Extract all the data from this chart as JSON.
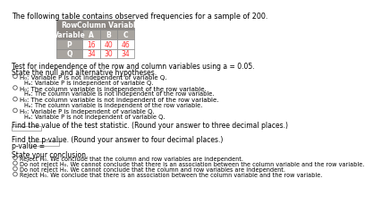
{
  "title": "The following table contains observed frequencies for a sample of 200.",
  "col_labels": [
    "A",
    "B",
    "C"
  ],
  "row_labels": [
    "P",
    "Q"
  ],
  "values": [
    [
      16,
      40,
      46
    ],
    [
      34,
      30,
      34
    ]
  ],
  "table_header_bg": "#8B8682",
  "table_sub_bg": "#A8A49F",
  "table_value_bg": "#FFFFFF",
  "table_value_color": "#FF3333",
  "alpha_text": "Test for independence of the row and column variables using a = 0.05.",
  "section1_title": "State the null and alternative hypotheses.",
  "options": [
    [
      "H₀: Variable P is not independent of variable Q.",
      "Hₐ: Variable P is independent of variable Q."
    ],
    [
      "H₀: The column variable is independent of the row variable.",
      "Hₐ: The column variable is not independent of the row variable."
    ],
    [
      "H₀: The column variable is not independent of the row variable.",
      "Hₐ: The column variable is independent of the row variable."
    ],
    [
      "H₀: Variable P is independent of variable Q.",
      "Hₐ: Variable P is not independent of variable Q."
    ]
  ],
  "stat_label": "Find the value of the test statistic. (Round your answer to three decimal places.)",
  "pval_label": "Find the p-value. (Round your answer to four decimal places.)",
  "pval_eq": "p-value =",
  "conclusion_title": "State your conclusion.",
  "conclusion_options": [
    "Reject H₀. We conclude that the column and row variables are independent.",
    "Do not reject H₀. We cannot conclude that there is an association between the column variable and the row variable.",
    "Do not reject H₀. We cannot conclude that the column and row variables are independent.",
    "Reject H₀. We conclude that there is an association between the column variable and the row variable."
  ],
  "bg_color": "#FFFFFF",
  "text_color": "#000000",
  "fs_title": 5.8,
  "fs_body": 5.5,
  "fs_small": 5.0,
  "fs_table": 5.5
}
